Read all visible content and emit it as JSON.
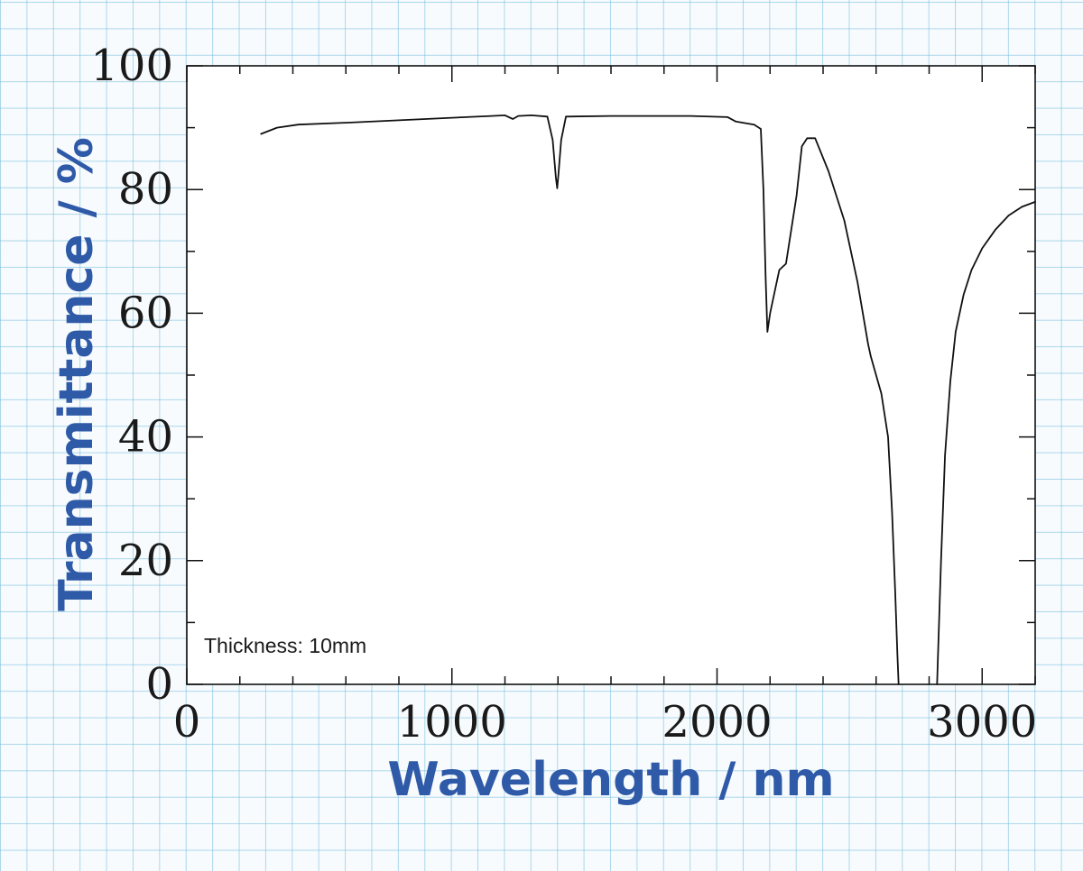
{
  "chart_data": {
    "type": "line",
    "xlabel": "Wavelength / nm",
    "ylabel": "Transmittance / %",
    "annotation": "Thickness: 10mm",
    "xlim": [
      0,
      3200
    ],
    "ylim": [
      0,
      100
    ],
    "x_ticks": [
      0,
      1000,
      2000,
      3000
    ],
    "y_ticks": [
      0,
      20,
      40,
      60,
      80,
      100
    ],
    "x_minor_step": 200,
    "y_minor_step": 10,
    "grid": false,
    "series": [
      {
        "name": "Transmittance",
        "color": "#111111",
        "segments": [
          [
            [
              280,
              89.0
            ],
            [
              340,
              90.0
            ],
            [
              420,
              90.5
            ],
            [
              600,
              90.8
            ],
            [
              800,
              91.2
            ],
            [
              1000,
              91.6
            ],
            [
              1150,
              91.9
            ],
            [
              1200,
              92.0
            ],
            [
              1230,
              91.4
            ],
            [
              1250,
              91.9
            ],
            [
              1300,
              92.0
            ],
            [
              1360,
              91.8
            ],
            [
              1380,
              88.0
            ],
            [
              1392,
              82.0
            ],
            [
              1397,
              80.2
            ],
            [
              1402,
              82.5
            ],
            [
              1412,
              88.0
            ],
            [
              1430,
              91.8
            ],
            [
              1600,
              91.9
            ],
            [
              1900,
              91.9
            ],
            [
              2040,
              91.7
            ],
            [
              2070,
              91.0
            ],
            [
              2140,
              90.5
            ],
            [
              2165,
              89.8
            ],
            [
              2175,
              80.0
            ],
            [
              2183,
              66.0
            ],
            [
              2190,
              57.0
            ],
            [
              2200,
              60.0
            ],
            [
              2220,
              64.0
            ],
            [
              2235,
              67.0
            ],
            [
              2260,
              68.0
            ],
            [
              2300,
              79.0
            ],
            [
              2320,
              87.0
            ],
            [
              2340,
              88.3
            ],
            [
              2370,
              88.3
            ],
            [
              2420,
              83.0
            ],
            [
              2480,
              75.0
            ],
            [
              2530,
              65.0
            ],
            [
              2570,
              55.0
            ],
            [
              2580,
              53.0
            ],
            [
              2620,
              47.0
            ],
            [
              2645,
              40.0
            ],
            [
              2660,
              28.0
            ],
            [
              2672,
              15.0
            ],
            [
              2680,
              5.0
            ],
            [
              2685,
              0.0
            ]
          ],
          [
            [
              2830,
              0.0
            ],
            [
              2845,
              20.0
            ],
            [
              2860,
              37.0
            ],
            [
              2880,
              49.0
            ],
            [
              2900,
              57.0
            ],
            [
              2930,
              63.0
            ],
            [
              2960,
              67.0
            ],
            [
              3000,
              70.5
            ],
            [
              3050,
              73.5
            ],
            [
              3100,
              75.8
            ],
            [
              3150,
              77.2
            ],
            [
              3200,
              78.0
            ]
          ]
        ]
      }
    ]
  }
}
